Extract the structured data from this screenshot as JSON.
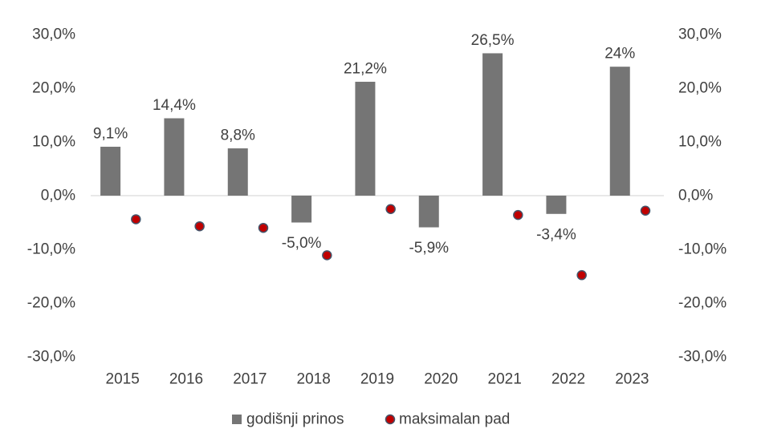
{
  "chart_data": {
    "type": "bar",
    "categories": [
      "2015",
      "2016",
      "2017",
      "2018",
      "2019",
      "2020",
      "2021",
      "2022",
      "2023"
    ],
    "series": [
      {
        "name": "godišnji prinos",
        "type": "bar",
        "values": [
          9.1,
          14.4,
          8.8,
          -5.0,
          21.2,
          -5.9,
          26.5,
          -3.4,
          24.0
        ],
        "labels": [
          "9,1%",
          "14,4%",
          "8,8%",
          "-5,0%",
          "21,2%",
          "-5,9%",
          "26,5%",
          "-3,4%",
          "24%"
        ],
        "color": "#757575"
      },
      {
        "name": "maksimalan pad",
        "type": "scatter",
        "values": [
          -4.4,
          -5.7,
          -6.0,
          -11.1,
          -2.5,
          null,
          -3.6,
          -14.8,
          -2.8
        ],
        "color": "#c00000",
        "edge_color": "#44546a"
      }
    ],
    "y_ticks": [
      30,
      20,
      10,
      0,
      -10,
      -20,
      -30
    ],
    "y_tick_labels": [
      "30,0%",
      "20,0%",
      "10,0%",
      "0,0%",
      "-10,0%",
      "-20,0%",
      "-30,0%"
    ],
    "ylim": [
      -30,
      30
    ],
    "secondary_y_axis": true,
    "grid": false,
    "legend_position": "bottom"
  }
}
